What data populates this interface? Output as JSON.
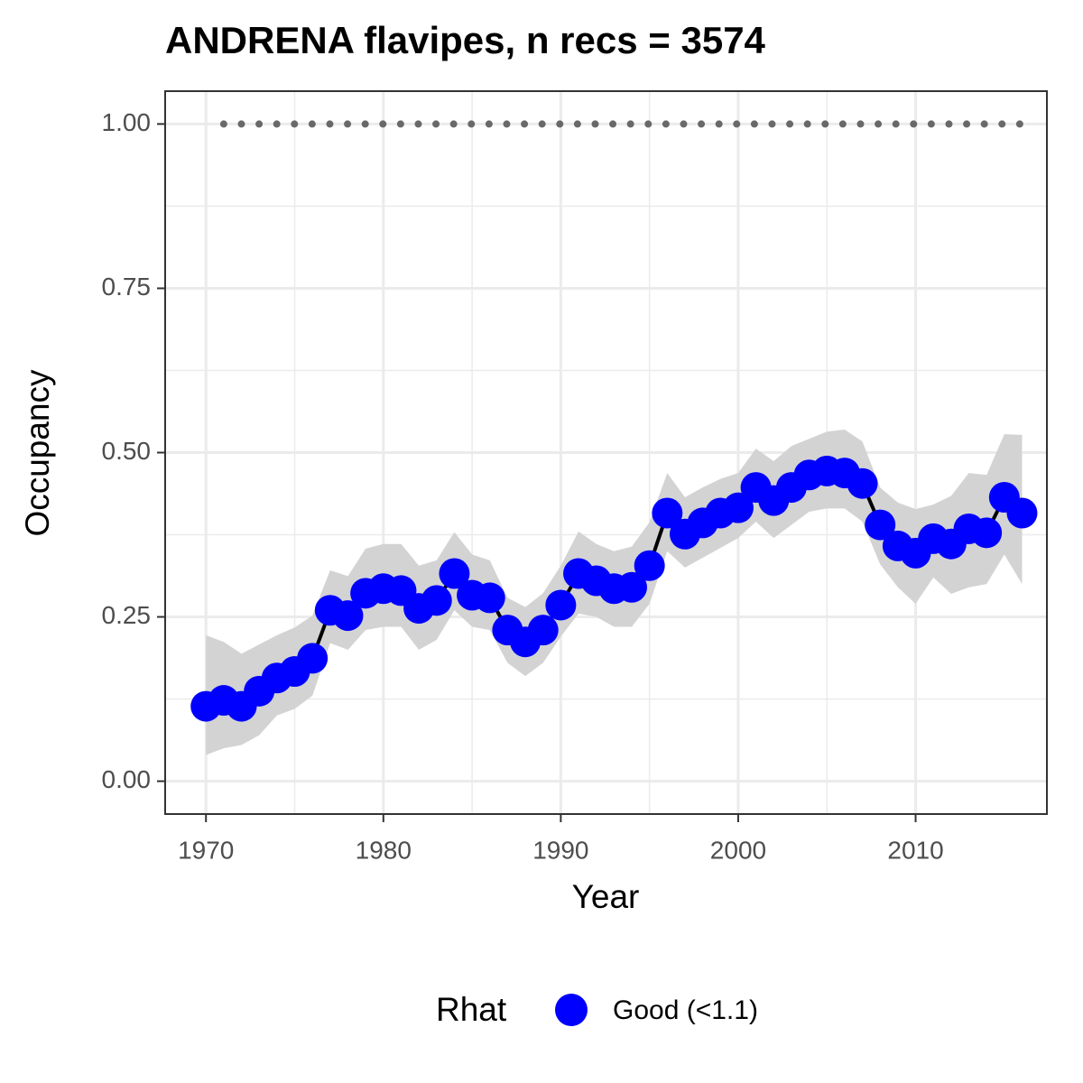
{
  "chart_data": {
    "type": "line",
    "title": "ANDRENA flavipes, n recs = 3574",
    "x_label": "Year",
    "y_label": "Occupancy",
    "x": [
      1970,
      1971,
      1972,
      1973,
      1974,
      1975,
      1976,
      1977,
      1978,
      1979,
      1980,
      1981,
      1982,
      1983,
      1984,
      1985,
      1986,
      1987,
      1988,
      1989,
      1990,
      1991,
      1992,
      1993,
      1994,
      1995,
      1996,
      1997,
      1998,
      1999,
      2000,
      2001,
      2002,
      2003,
      2004,
      2005,
      2006,
      2007,
      2008,
      2009,
      2010,
      2011,
      2012,
      2013,
      2014,
      2015,
      2016
    ],
    "series": [
      {
        "name": "Good (<1.1)",
        "color": "#0000ff",
        "line_color": "#000000",
        "band_color": "#d3d3d3",
        "values": [
          0.114,
          0.123,
          0.114,
          0.137,
          0.157,
          0.167,
          0.187,
          0.26,
          0.252,
          0.286,
          0.293,
          0.29,
          0.263,
          0.275,
          0.316,
          0.283,
          0.279,
          0.23,
          0.212,
          0.23,
          0.268,
          0.316,
          0.305,
          0.293,
          0.295,
          0.328,
          0.408,
          0.376,
          0.393,
          0.408,
          0.416,
          0.447,
          0.427,
          0.447,
          0.466,
          0.472,
          0.469,
          0.453,
          0.39,
          0.358,
          0.347,
          0.369,
          0.361,
          0.384,
          0.378,
          0.432,
          0.408
        ],
        "upper": [
          0.222,
          0.212,
          0.194,
          0.208,
          0.222,
          0.234,
          0.252,
          0.321,
          0.312,
          0.354,
          0.361,
          0.361,
          0.328,
          0.336,
          0.379,
          0.345,
          0.336,
          0.279,
          0.265,
          0.286,
          0.328,
          0.38,
          0.361,
          0.35,
          0.357,
          0.394,
          0.469,
          0.432,
          0.447,
          0.46,
          0.469,
          0.506,
          0.487,
          0.51,
          0.521,
          0.532,
          0.535,
          0.517,
          0.447,
          0.424,
          0.414,
          0.421,
          0.434,
          0.469,
          0.466,
          0.528,
          0.527
        ],
        "lower": [
          0.04,
          0.05,
          0.055,
          0.07,
          0.1,
          0.11,
          0.13,
          0.21,
          0.2,
          0.23,
          0.235,
          0.235,
          0.2,
          0.215,
          0.26,
          0.235,
          0.23,
          0.18,
          0.16,
          0.18,
          0.22,
          0.255,
          0.25,
          0.235,
          0.235,
          0.27,
          0.35,
          0.325,
          0.34,
          0.355,
          0.37,
          0.395,
          0.37,
          0.39,
          0.41,
          0.415,
          0.415,
          0.395,
          0.33,
          0.295,
          0.27,
          0.31,
          0.285,
          0.295,
          0.3,
          0.345,
          0.3
        ]
      }
    ],
    "reference_line": {
      "y": 1,
      "x": [
        1971,
        2016
      ],
      "color": "#696969"
    },
    "legend_title": "Rhat",
    "legend_position": "bottom",
    "xlim": [
      1967.7,
      2017.4
    ],
    "xticks": [
      1970,
      1980,
      1990,
      2000,
      2010
    ],
    "ylim": [
      -0.05,
      1.05
    ],
    "yticks": [
      {
        "value": 0,
        "label": "0.00"
      },
      {
        "value": 0.25,
        "label": "0.25"
      },
      {
        "value": 0.5,
        "label": "0.50"
      },
      {
        "value": 0.75,
        "label": "0.75"
      },
      {
        "value": 1,
        "label": "1.00"
      }
    ],
    "grid": true
  }
}
